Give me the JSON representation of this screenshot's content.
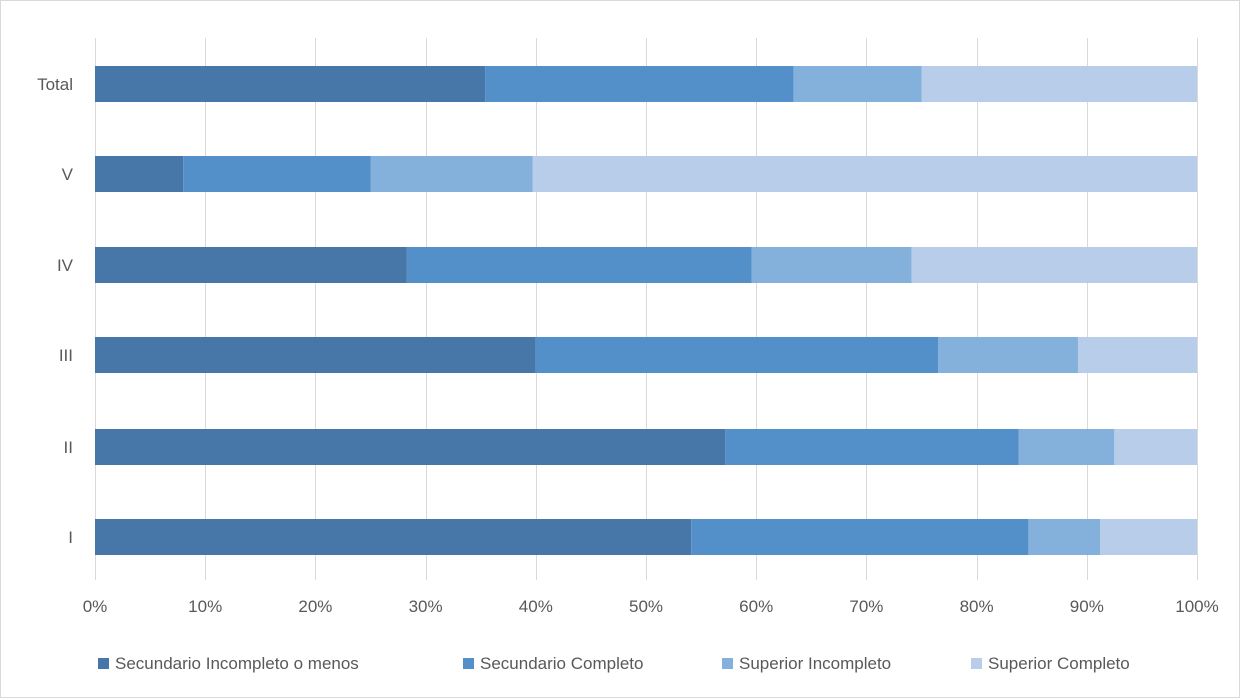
{
  "chart_data": {
    "type": "bar",
    "orientation": "horizontal",
    "stacked": "percent",
    "title": "",
    "xlabel": "",
    "ylabel": "",
    "xlim": [
      0,
      100
    ],
    "x_ticks": [
      "0%",
      "10%",
      "20%",
      "30%",
      "40%",
      "50%",
      "60%",
      "70%",
      "80%",
      "90%",
      "100%"
    ],
    "grid": "vertical",
    "legend_position": "bottom",
    "categories": [
      "Total",
      "V",
      "IV",
      "III",
      "II",
      "I"
    ],
    "series": [
      {
        "name": "Secundario Incompleto o menos",
        "color": "#4677a8",
        "values": [
          35.4,
          8.0,
          28.3,
          40.0,
          57.2,
          54.1
        ]
      },
      {
        "name": "Secundario Completo",
        "color": "#5390c9",
        "values": [
          28.0,
          17.0,
          31.3,
          36.5,
          26.6,
          30.6
        ]
      },
      {
        "name": "Superior Incompleto",
        "color": "#84b0dc",
        "values": [
          11.6,
          14.7,
          14.5,
          12.7,
          8.7,
          6.5
        ]
      },
      {
        "name": "Superior Completo",
        "color": "#b8cde9",
        "values": [
          25.0,
          60.3,
          25.9,
          10.8,
          7.5,
          8.8
        ]
      }
    ]
  }
}
